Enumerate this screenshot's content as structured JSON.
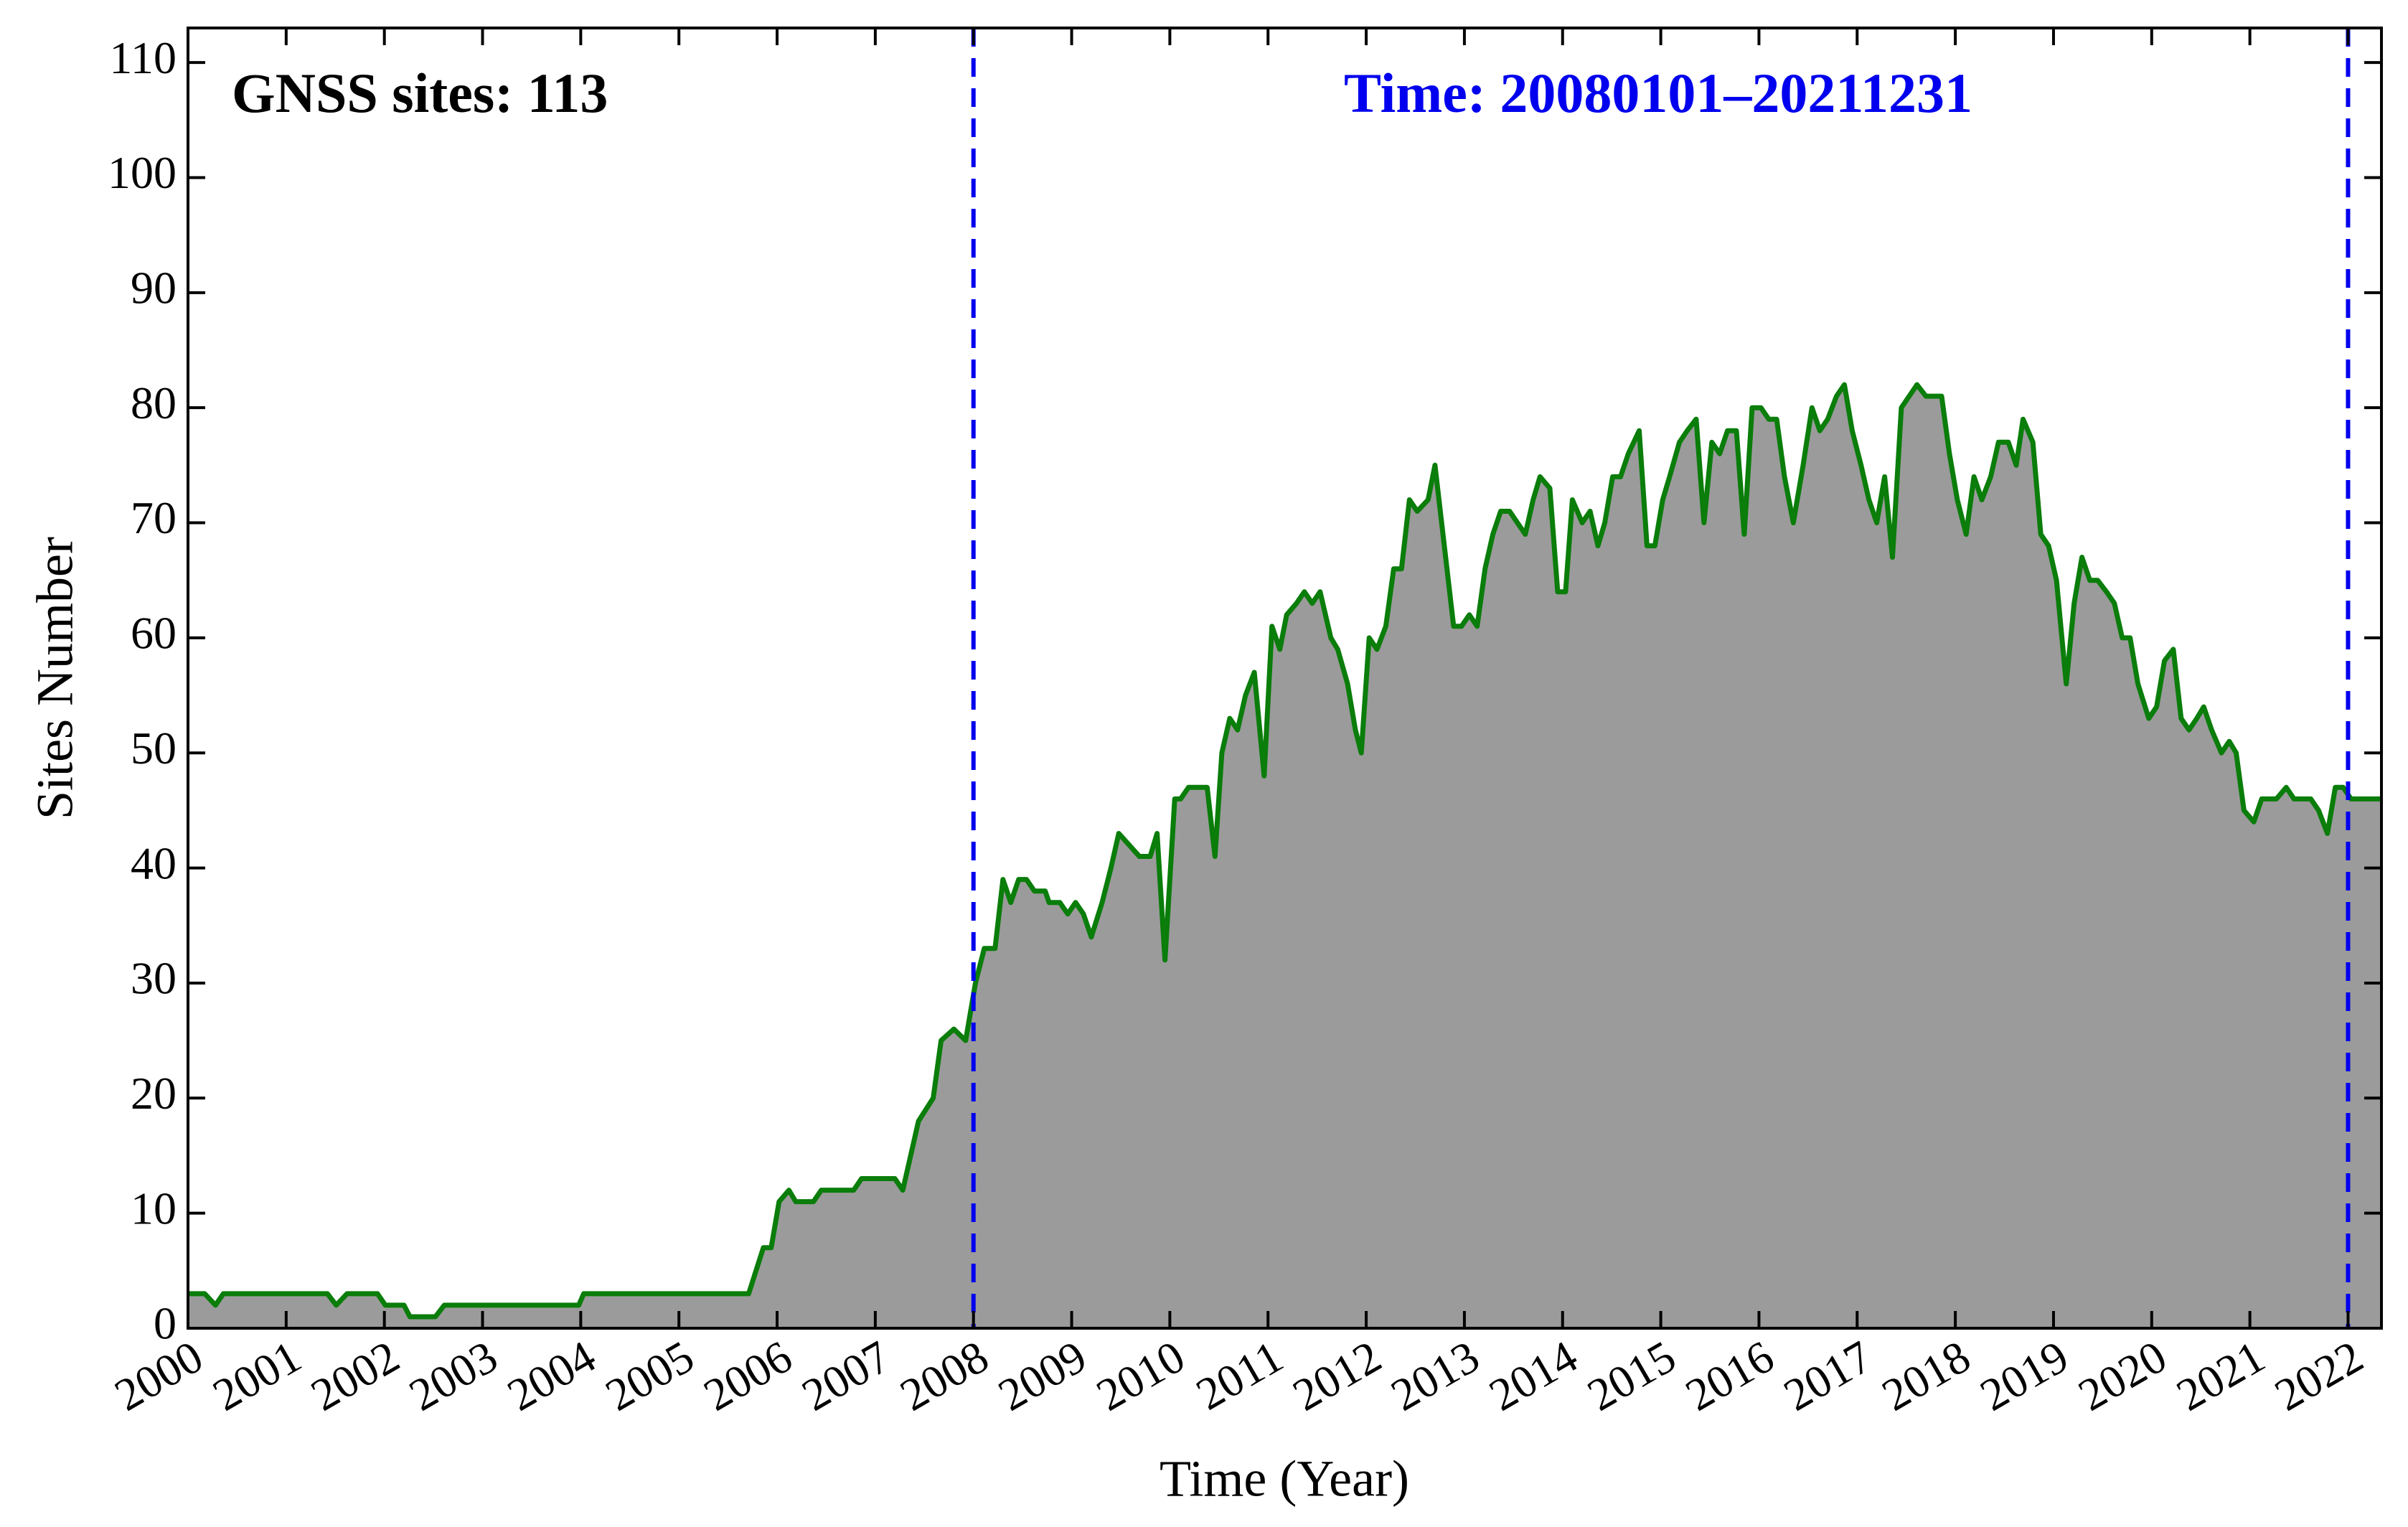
{
  "chart_data": {
    "type": "area",
    "xlabel": "Time (Year)",
    "ylabel": "Sites Number",
    "annotations": [
      {
        "text": "GNSS sites: 113",
        "color": "#000000"
      },
      {
        "text": "Time: 20080101–20211231",
        "color": "#0000ee"
      }
    ],
    "vlines": [
      2008,
      2022
    ],
    "vline_color": "#0000ee",
    "line_color": "#0a7d0a",
    "fill_color": "#9b9b9b",
    "xlim": [
      2000,
      2022.34
    ],
    "xticks": [
      2000,
      2001,
      2002,
      2003,
      2004,
      2005,
      2006,
      2007,
      2008,
      2009,
      2010,
      2011,
      2012,
      2013,
      2014,
      2015,
      2016,
      2017,
      2018,
      2019,
      2020,
      2021,
      2022
    ],
    "ylim": [
      0,
      113
    ],
    "yticks": [
      0,
      10,
      20,
      30,
      40,
      50,
      60,
      70,
      80,
      90,
      100,
      110
    ],
    "x": [
      2000.0,
      2000.17,
      2000.28,
      2000.36,
      2001.42,
      2001.51,
      2001.62,
      2001.93,
      2002.01,
      2002.2,
      2002.26,
      2002.52,
      2002.61,
      2003.98,
      2004.03,
      2005.71,
      2005.86,
      2005.94,
      2006.02,
      2006.12,
      2006.19,
      2006.37,
      2006.45,
      2006.78,
      2006.86,
      2007.2,
      2007.28,
      2007.44,
      2007.59,
      2007.67,
      2007.8,
      2007.92,
      2008.02,
      2008.11,
      2008.22,
      2008.3,
      2008.38,
      2008.46,
      2008.54,
      2008.62,
      2008.73,
      2008.77,
      2008.88,
      2008.96,
      2009.04,
      2009.12,
      2009.2,
      2009.31,
      2009.4,
      2009.48,
      2009.69,
      2009.8,
      2009.87,
      2009.95,
      2010.05,
      2010.11,
      2010.19,
      2010.38,
      2010.46,
      2010.53,
      2010.61,
      2010.69,
      2010.77,
      2010.86,
      2010.96,
      2011.04,
      2011.12,
      2011.19,
      2011.29,
      2011.37,
      2011.45,
      2011.53,
      2011.64,
      2011.71,
      2011.81,
      2011.89,
      2011.95,
      2012.03,
      2012.11,
      2012.2,
      2012.28,
      2012.36,
      2012.44,
      2012.52,
      2012.63,
      2012.7,
      2012.89,
      2012.97,
      2013.05,
      2013.13,
      2013.21,
      2013.29,
      2013.37,
      2013.46,
      2013.54,
      2013.62,
      2013.7,
      2013.77,
      2013.87,
      2013.95,
      2014.03,
      2014.1,
      2014.2,
      2014.28,
      2014.36,
      2014.43,
      2014.51,
      2014.59,
      2014.67,
      2014.78,
      2014.86,
      2014.94,
      2015.02,
      2015.09,
      2015.19,
      2015.27,
      2015.36,
      2015.44,
      2015.52,
      2015.6,
      2015.68,
      2015.77,
      2015.85,
      2015.93,
      2016.02,
      2016.1,
      2016.18,
      2016.26,
      2016.35,
      2016.45,
      2016.54,
      2016.62,
      2016.7,
      2016.79,
      2016.87,
      2016.95,
      2017.04,
      2017.12,
      2017.2,
      2017.28,
      2017.36,
      2017.45,
      2017.61,
      2017.7,
      2017.86,
      2017.94,
      2018.02,
      2018.11,
      2018.19,
      2018.27,
      2018.36,
      2018.44,
      2018.54,
      2018.62,
      2018.69,
      2018.79,
      2018.87,
      2018.95,
      2019.03,
      2019.13,
      2019.21,
      2019.29,
      2019.37,
      2019.45,
      2019.54,
      2019.62,
      2019.7,
      2019.78,
      2019.86,
      2019.97,
      2020.05,
      2020.13,
      2020.22,
      2020.3,
      2020.38,
      2020.46,
      2020.53,
      2020.61,
      2020.71,
      2020.79,
      2020.86,
      2020.94,
      2021.04,
      2021.12,
      2021.27,
      2021.37,
      2021.45,
      2021.62,
      2021.7,
      2021.79,
      2021.87,
      2021.95,
      2022.03,
      2022.34
    ],
    "values": [
      3,
      3,
      2,
      3,
      3,
      2,
      3,
      3,
      2,
      2,
      1,
      1,
      2,
      2,
      3,
      3,
      7,
      7,
      11,
      12,
      11,
      11,
      12,
      12,
      13,
      13,
      12,
      18,
      20,
      25,
      26,
      25,
      30,
      33,
      33,
      39,
      37,
      39,
      39,
      38,
      38,
      37,
      37,
      36,
      37,
      36,
      34,
      37,
      40,
      43,
      41,
      41,
      43,
      32,
      46,
      46,
      47,
      47,
      41,
      50,
      53,
      52,
      55,
      57,
      48,
      61,
      59,
      62,
      63,
      64,
      63,
      64,
      60,
      59,
      56,
      52,
      50,
      60,
      59,
      61,
      66,
      66,
      72,
      71,
      72,
      75,
      61,
      61,
      62,
      61,
      66,
      69,
      71,
      71,
      70,
      69,
      72,
      74,
      73,
      64,
      64,
      72,
      70,
      71,
      68,
      70,
      74,
      74,
      76,
      78,
      68,
      68,
      72,
      74,
      77,
      78,
      79,
      70,
      77,
      76,
      78,
      78,
      69,
      80,
      80,
      79,
      79,
      74,
      70,
      75,
      80,
      78,
      79,
      81,
      82,
      78,
      75,
      72,
      70,
      74,
      67,
      80,
      82,
      81,
      81,
      76,
      72,
      69,
      74,
      72,
      74,
      77,
      77,
      75,
      79,
      77,
      69,
      68,
      65,
      56,
      63,
      67,
      65,
      65,
      64,
      63,
      60,
      60,
      56,
      53,
      54,
      58,
      59,
      53,
      52,
      53,
      54,
      52,
      50,
      51,
      50,
      45,
      44,
      46,
      46,
      47,
      46,
      46,
      45,
      43,
      47,
      47,
      46,
      46
    ]
  }
}
